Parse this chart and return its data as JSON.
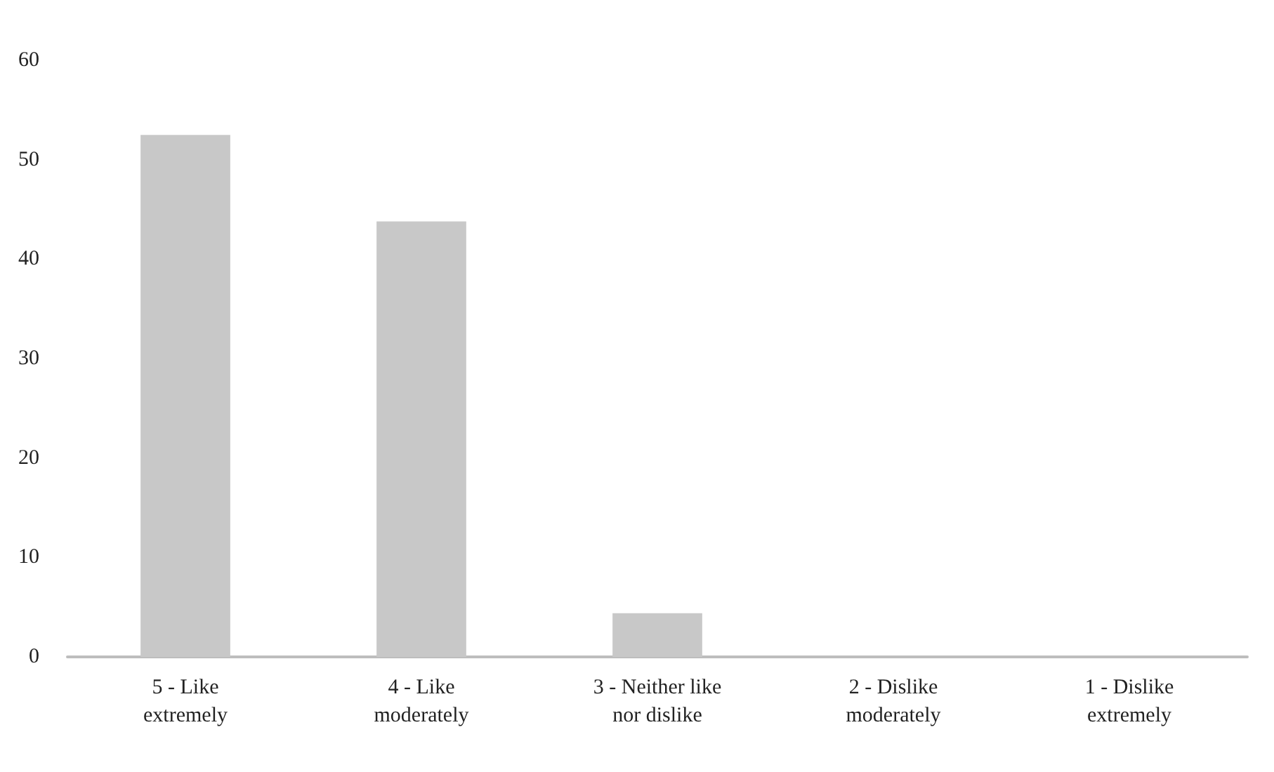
{
  "chart_data": {
    "type": "bar",
    "categories": [
      "5 - Like\nextremely",
      "4 - Like\nmoderately",
      "3 - Neither like\nnor dislike",
      "2 - Dislike\nmoderately",
      "1 - Dislike\nextremely"
    ],
    "values": [
      52.5,
      43.8,
      4.4,
      0,
      0
    ],
    "color": "#c8c8c8",
    "ylim": [
      0,
      60
    ],
    "yticks": [
      0,
      10,
      20,
      30,
      40,
      50,
      60
    ],
    "grid": false
  }
}
